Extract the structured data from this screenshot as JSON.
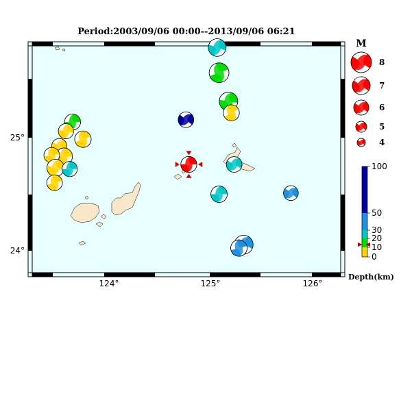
{
  "title": "Period:2003/09/06 00:00--2013/09/06 06:21",
  "axes": {
    "lon_ticks": [
      "124°",
      "125°",
      "126°"
    ],
    "lat_ticks": [
      "25°",
      "24°"
    ]
  },
  "magnitude_legend": {
    "heading": "M",
    "items": [
      {
        "label": "8",
        "magnitude": 8
      },
      {
        "label": "7",
        "magnitude": 7
      },
      {
        "label": "6",
        "magnitude": 6
      },
      {
        "label": "5",
        "magnitude": 5
      },
      {
        "label": "4",
        "magnitude": 4
      }
    ],
    "color": "#ff0000"
  },
  "depth_legend": {
    "label": "Depth(km)",
    "ticks": [
      "100",
      "50",
      "30",
      "20",
      "10",
      "0"
    ],
    "bands": [
      {
        "from_km": 0,
        "to_km": 10,
        "color": "#ffd400"
      },
      {
        "from_km": 10,
        "to_km": 20,
        "color": "#00dd00"
      },
      {
        "from_km": 20,
        "to_km": 30,
        "color": "#00c8c8"
      },
      {
        "from_km": 30,
        "to_km": 50,
        "color": "#1e90e0"
      },
      {
        "from_km": 50,
        "to_km": 100,
        "color": "#0000a0"
      }
    ]
  },
  "colors": {
    "ocean": "#e8ffff",
    "land": "#fae6c8",
    "frame": "#000000",
    "selected_marker": "#d00000"
  },
  "events": [
    {
      "lon": 125.0,
      "lat": 25.8,
      "mag": 5.3,
      "depth_class": 2,
      "rot": 20
    },
    {
      "lon": 125.02,
      "lat": 25.58,
      "mag": 5.8,
      "depth_class": 1,
      "rot": -20
    },
    {
      "lon": 125.12,
      "lat": 25.33,
      "mag": 5.5,
      "depth_class": 1,
      "rot": 10
    },
    {
      "lon": 125.15,
      "lat": 25.23,
      "mag": 4.9,
      "depth_class": 0,
      "rot": -30
    },
    {
      "lon": 124.67,
      "lat": 25.17,
      "mag": 4.8,
      "depth_class": 4,
      "rot": 40
    },
    {
      "lon": 124.7,
      "lat": 24.78,
      "mag": 4.9,
      "depth_class": 5,
      "rot": 0
    },
    {
      "lon": 123.47,
      "lat": 25.15,
      "mag": 4.9,
      "depth_class": 1,
      "rot": 0
    },
    {
      "lon": 123.4,
      "lat": 25.07,
      "mag": 4.7,
      "depth_class": 0,
      "rot": 10
    },
    {
      "lon": 123.58,
      "lat": 25.0,
      "mag": 5.0,
      "depth_class": 0,
      "rot": -20
    },
    {
      "lon": 123.33,
      "lat": 24.94,
      "mag": 4.7,
      "depth_class": 0,
      "rot": 30
    },
    {
      "lon": 123.38,
      "lat": 24.85,
      "mag": 5.1,
      "depth_class": 0,
      "rot": 0
    },
    {
      "lon": 123.25,
      "lat": 24.86,
      "mag": 4.8,
      "depth_class": 0,
      "rot": -10
    },
    {
      "lon": 123.29,
      "lat": 24.75,
      "mag": 5.2,
      "depth_class": 0,
      "rot": 15
    },
    {
      "lon": 123.44,
      "lat": 24.74,
      "mag": 4.7,
      "depth_class": 2,
      "rot": 0
    },
    {
      "lon": 123.28,
      "lat": 24.62,
      "mag": 4.8,
      "depth_class": 0,
      "rot": -15
    },
    {
      "lon": 125.18,
      "lat": 24.78,
      "mag": 4.8,
      "depth_class": 2,
      "rot": 30
    },
    {
      "lon": 125.02,
      "lat": 24.52,
      "mag": 5.0,
      "depth_class": 2,
      "rot": 0
    },
    {
      "lon": 125.78,
      "lat": 24.53,
      "mag": 4.6,
      "depth_class": 3,
      "rot": 40
    },
    {
      "lon": 125.28,
      "lat": 24.08,
      "mag": 5.6,
      "depth_class": 3,
      "rot": 25
    },
    {
      "lon": 125.23,
      "lat": 24.05,
      "mag": 5.0,
      "depth_class": 3,
      "rot": -15
    }
  ],
  "selected_event_index": 5
}
